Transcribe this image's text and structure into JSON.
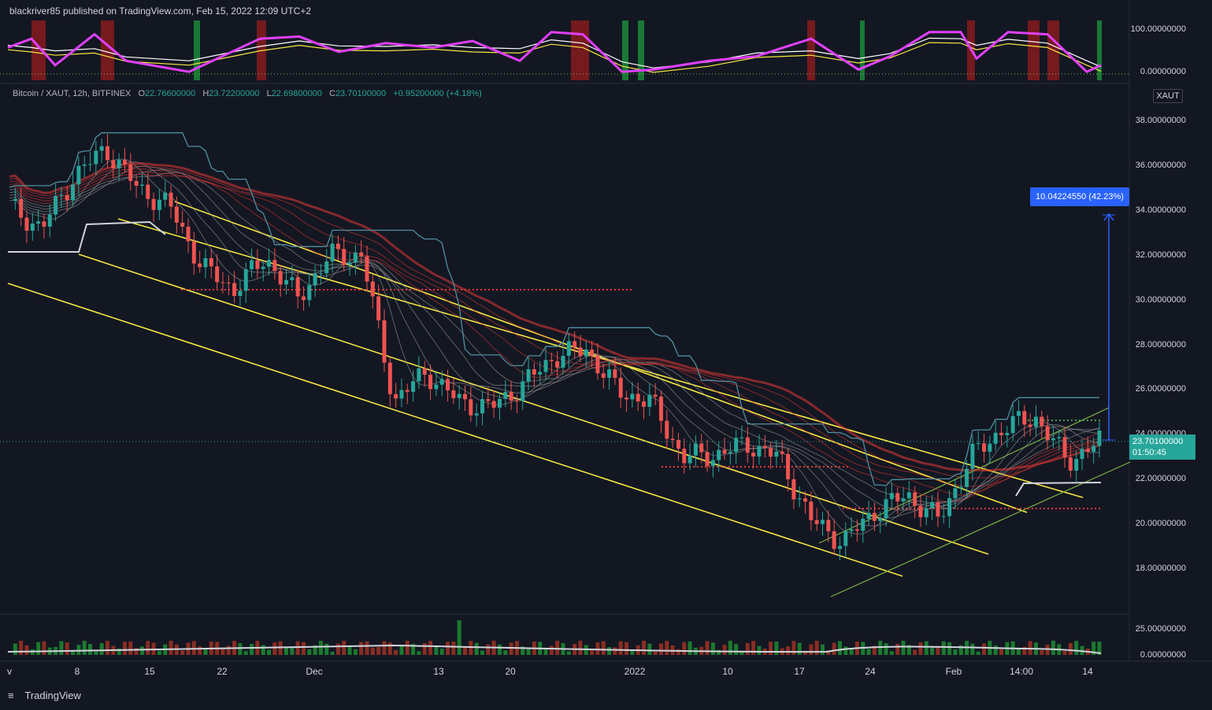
{
  "header": {
    "publisher": "blackriver85 published on TradingView.com, Feb 15, 2022 12:09 UTC+2"
  },
  "symbol": {
    "name": "Bitcoin / XAUT, 12h, BITFINEX",
    "open_label": "O",
    "open": "22.76600000",
    "high_label": "H",
    "high": "23.72200000",
    "low_label": "L",
    "low": "22.69800000",
    "close_label": "C",
    "close": "23.70100000",
    "change": "+0.95200000 (+4.18%)"
  },
  "currency_badge": "XAUT",
  "price_axis": [
    "38.00000000",
    "36.00000000",
    "34.00000000",
    "32.00000000",
    "30.00000000",
    "28.00000000",
    "26.00000000",
    "24.00000000",
    "22.00000000",
    "20.00000000",
    "18.00000000"
  ],
  "oscillator_axis": [
    "100.00000000",
    "0.00000000"
  ],
  "volume_axis": [
    "25.00000000",
    "0.00000000"
  ],
  "current_price": {
    "value": "23.70100000",
    "countdown": "01:50:45",
    "color": "#26a69a"
  },
  "measure": {
    "label": "10.04224550 (42.23%)",
    "color": "#2962ff"
  },
  "date_axis": [
    "v",
    "8",
    "15",
    "22",
    "Dec",
    "13",
    "20",
    "2022",
    "10",
    "17",
    "24",
    "Feb",
    "14:00",
    "14"
  ],
  "footer": {
    "brand": "TradingView"
  },
  "colors": {
    "up": "#26a69a",
    "down": "#ef5350",
    "channel": "#f5e642",
    "ribbon_down": "#e53935",
    "ribbon_up": "#43a047",
    "oscillator": "#e040fb",
    "background": "#131722"
  },
  "chart_data": {
    "type": "candlestick",
    "title": "Bitcoin / XAUT, 12h, BITFINEX",
    "ylim": [
      17,
      39
    ],
    "close_approx": [
      {
        "x": "Nov 1",
        "y": 34.2
      },
      {
        "x": "Nov 5",
        "y": 33.2
      },
      {
        "x": "Nov 8",
        "y": 35.5
      },
      {
        "x": "Nov 10",
        "y": 36.8
      },
      {
        "x": "Nov 12",
        "y": 35.0
      },
      {
        "x": "Nov 15",
        "y": 34.2
      },
      {
        "x": "Nov 18",
        "y": 31.5
      },
      {
        "x": "Nov 20",
        "y": 30.5
      },
      {
        "x": "Nov 22",
        "y": 31.9
      },
      {
        "x": "Nov 26",
        "y": 30.1
      },
      {
        "x": "Nov 30",
        "y": 32.0
      },
      {
        "x": "Dec 3",
        "y": 32.0
      },
      {
        "x": "Dec 4",
        "y": 25.5
      },
      {
        "x": "Dec 8",
        "y": 26.8
      },
      {
        "x": "Dec 13",
        "y": 25.5
      },
      {
        "x": "Dec 17",
        "y": 25.2
      },
      {
        "x": "Dec 20",
        "y": 26.2
      },
      {
        "x": "Dec 25",
        "y": 27.5
      },
      {
        "x": "Dec 28",
        "y": 27.8
      },
      {
        "x": "Jan 1",
        "y": 25.9
      },
      {
        "x": "Jan 5",
        "y": 25.5
      },
      {
        "x": "Jan 7",
        "y": 23.0
      },
      {
        "x": "Jan 10",
        "y": 23.1
      },
      {
        "x": "Jan 14",
        "y": 23.6
      },
      {
        "x": "Jan 18",
        "y": 23.0
      },
      {
        "x": "Jan 21",
        "y": 20.2
      },
      {
        "x": "Jan 24",
        "y": 19.2
      },
      {
        "x": "Jan 28",
        "y": 20.6
      },
      {
        "x": "Feb 1",
        "y": 21.3
      },
      {
        "x": "Feb 4",
        "y": 20.2
      },
      {
        "x": "Feb 6",
        "y": 23.0
      },
      {
        "x": "Feb 9",
        "y": 24.3
      },
      {
        "x": "Feb 11",
        "y": 24.8
      },
      {
        "x": "Feb 13",
        "y": 22.8
      },
      {
        "x": "Feb 15",
        "y": 23.7
      }
    ]
  }
}
